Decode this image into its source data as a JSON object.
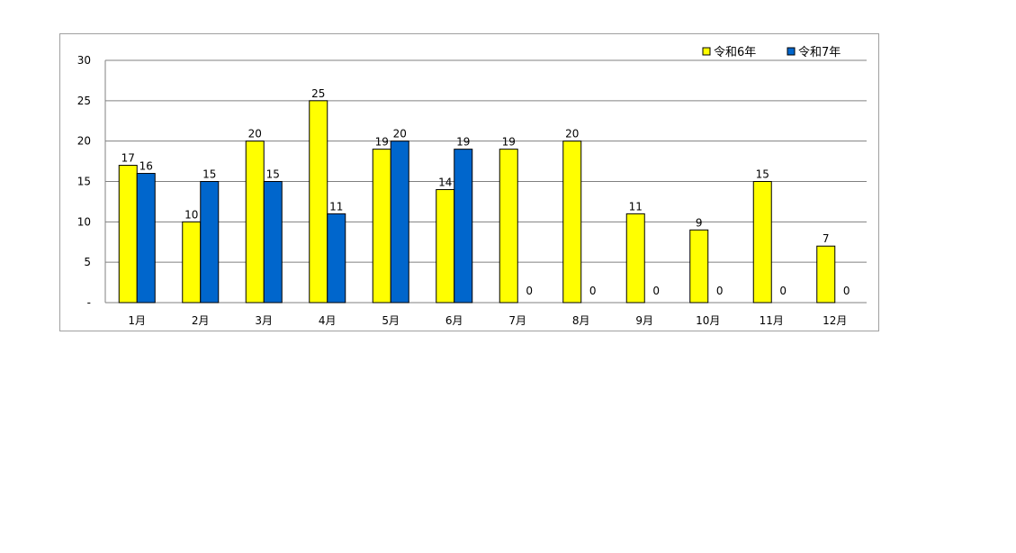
{
  "chart_data": {
    "type": "bar",
    "categories": [
      "1月",
      "2月",
      "3月",
      "4月",
      "5月",
      "6月",
      "7月",
      "8月",
      "9月",
      "10月",
      "11月",
      "12月"
    ],
    "series": [
      {
        "name": "令和6年",
        "color": "#ffff00",
        "values": [
          17,
          10,
          20,
          25,
          19,
          14,
          19,
          20,
          11,
          9,
          15,
          7
        ]
      },
      {
        "name": "令和7年",
        "color": "#0066cc",
        "values": [
          16,
          15,
          15,
          11,
          20,
          19,
          0,
          0,
          0,
          0,
          0,
          0
        ]
      }
    ],
    "ylim": [
      0,
      30
    ],
    "yticks": [
      {
        "value": 0,
        "label": "-"
      },
      {
        "value": 5,
        "label": "5"
      },
      {
        "value": 10,
        "label": "10"
      },
      {
        "value": 15,
        "label": "15"
      },
      {
        "value": 20,
        "label": "20"
      },
      {
        "value": 25,
        "label": "25"
      },
      {
        "value": 30,
        "label": "30"
      }
    ],
    "grid": true,
    "legend_position": "top-right",
    "data_labels": true
  }
}
